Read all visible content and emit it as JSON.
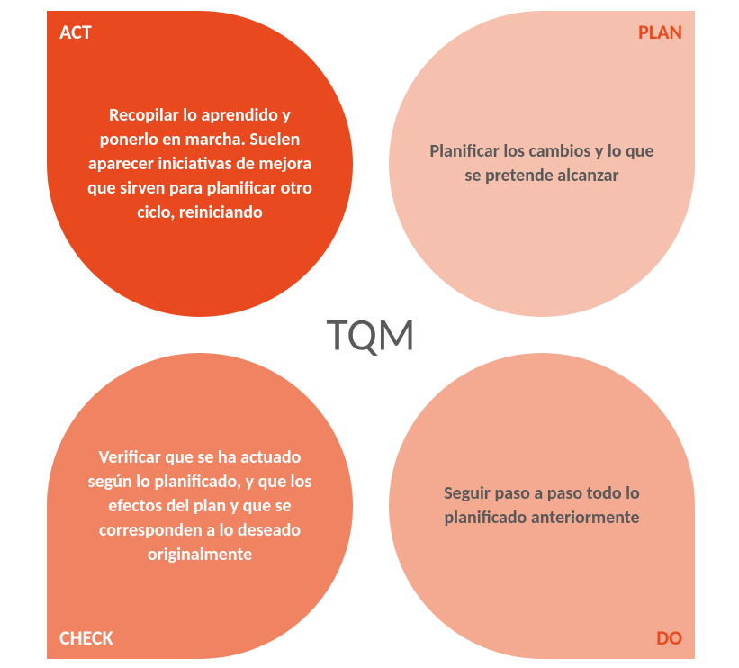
{
  "diagram": {
    "type": "infographic",
    "layout": "four-petal-quadrant",
    "background_color": "#ffffff",
    "center": {
      "text": "TQM",
      "color": "#595959",
      "fontsize": 50
    },
    "quadrants": {
      "top_left": {
        "label": "ACT",
        "body": "Recopilar lo aprendido y ponerlo en marcha. Suelen aparecer iniciativas de mejora que sirven para planificar otro ciclo, reiniciando",
        "fill_color": "#e8491f",
        "label_color": "#ffffff",
        "body_color": "#ffffff",
        "label_fontsize": 22,
        "body_fontsize": 20
      },
      "top_right": {
        "label": "PLAN",
        "body": "Planificar los cambios y lo que se pretende alcanzar",
        "fill_color": "#f5c0ad",
        "label_color": "#e8491f",
        "body_color": "#595959",
        "label_fontsize": 22,
        "body_fontsize": 20
      },
      "bottom_left": {
        "label": "CHECK",
        "body": "Verificar que se ha actuado según lo planificado, y que los efectos del plan y que se corresponden a lo deseado originalmente",
        "fill_color": "#ef8362",
        "label_color": "#ffffff",
        "body_color": "#ffffff",
        "label_fontsize": 22,
        "body_fontsize": 20
      },
      "bottom_right": {
        "label": "DO",
        "body": "Seguir paso a paso todo lo planificado anteriormente",
        "fill_color": "#f3aa91",
        "label_color": "#e8491f",
        "body_color": "#595959",
        "label_fontsize": 22,
        "body_fontsize": 20
      }
    }
  }
}
